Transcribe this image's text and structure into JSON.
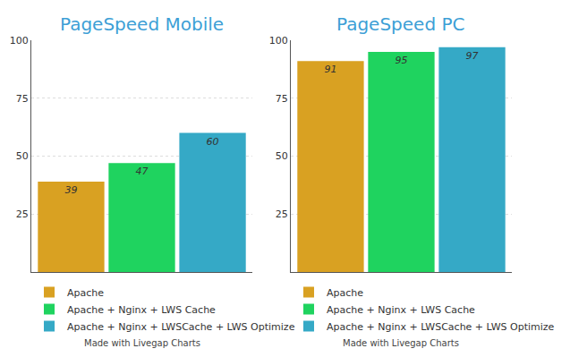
{
  "chart_data": [
    {
      "type": "bar",
      "title": "PageSpeed Mobile",
      "categories": [
        null
      ],
      "series": [
        {
          "name": "Apache",
          "color": "#d9a122",
          "values": [
            39
          ]
        },
        {
          "name": "Apache + Nginx + LWS Cache",
          "color": "#1fd35f",
          "values": [
            47
          ]
        },
        {
          "name": "Apache + Nginx + LWSCache + LWS Optimize",
          "color": "#35a9c6",
          "values": [
            60
          ]
        }
      ],
      "ylim": [
        0,
        100
      ],
      "yticks": [
        25,
        50,
        75,
        100
      ],
      "grid": true,
      "data_labels": true,
      "tick_labels": "y",
      "legend": "bottom",
      "annotations": [
        "Made with Livegap Charts"
      ]
    },
    {
      "type": "bar",
      "title": "PageSpeed PC",
      "categories": [
        null
      ],
      "series": [
        {
          "name": "Apache",
          "color": "#d9a122",
          "values": [
            91
          ]
        },
        {
          "name": "Apache + Nginx + LWS Cache",
          "color": "#1fd35f",
          "values": [
            95
          ]
        },
        {
          "name": "Apache + Nginx + LWSCache + LWS Optimize",
          "color": "#35a9c6",
          "values": [
            97
          ]
        }
      ],
      "ylim": [
        0,
        100
      ],
      "yticks": [
        25,
        50,
        75,
        100
      ],
      "grid": true,
      "data_labels": true,
      "tick_labels": "y",
      "legend": "bottom",
      "annotations": [
        "Made with Livegap Charts"
      ]
    }
  ]
}
